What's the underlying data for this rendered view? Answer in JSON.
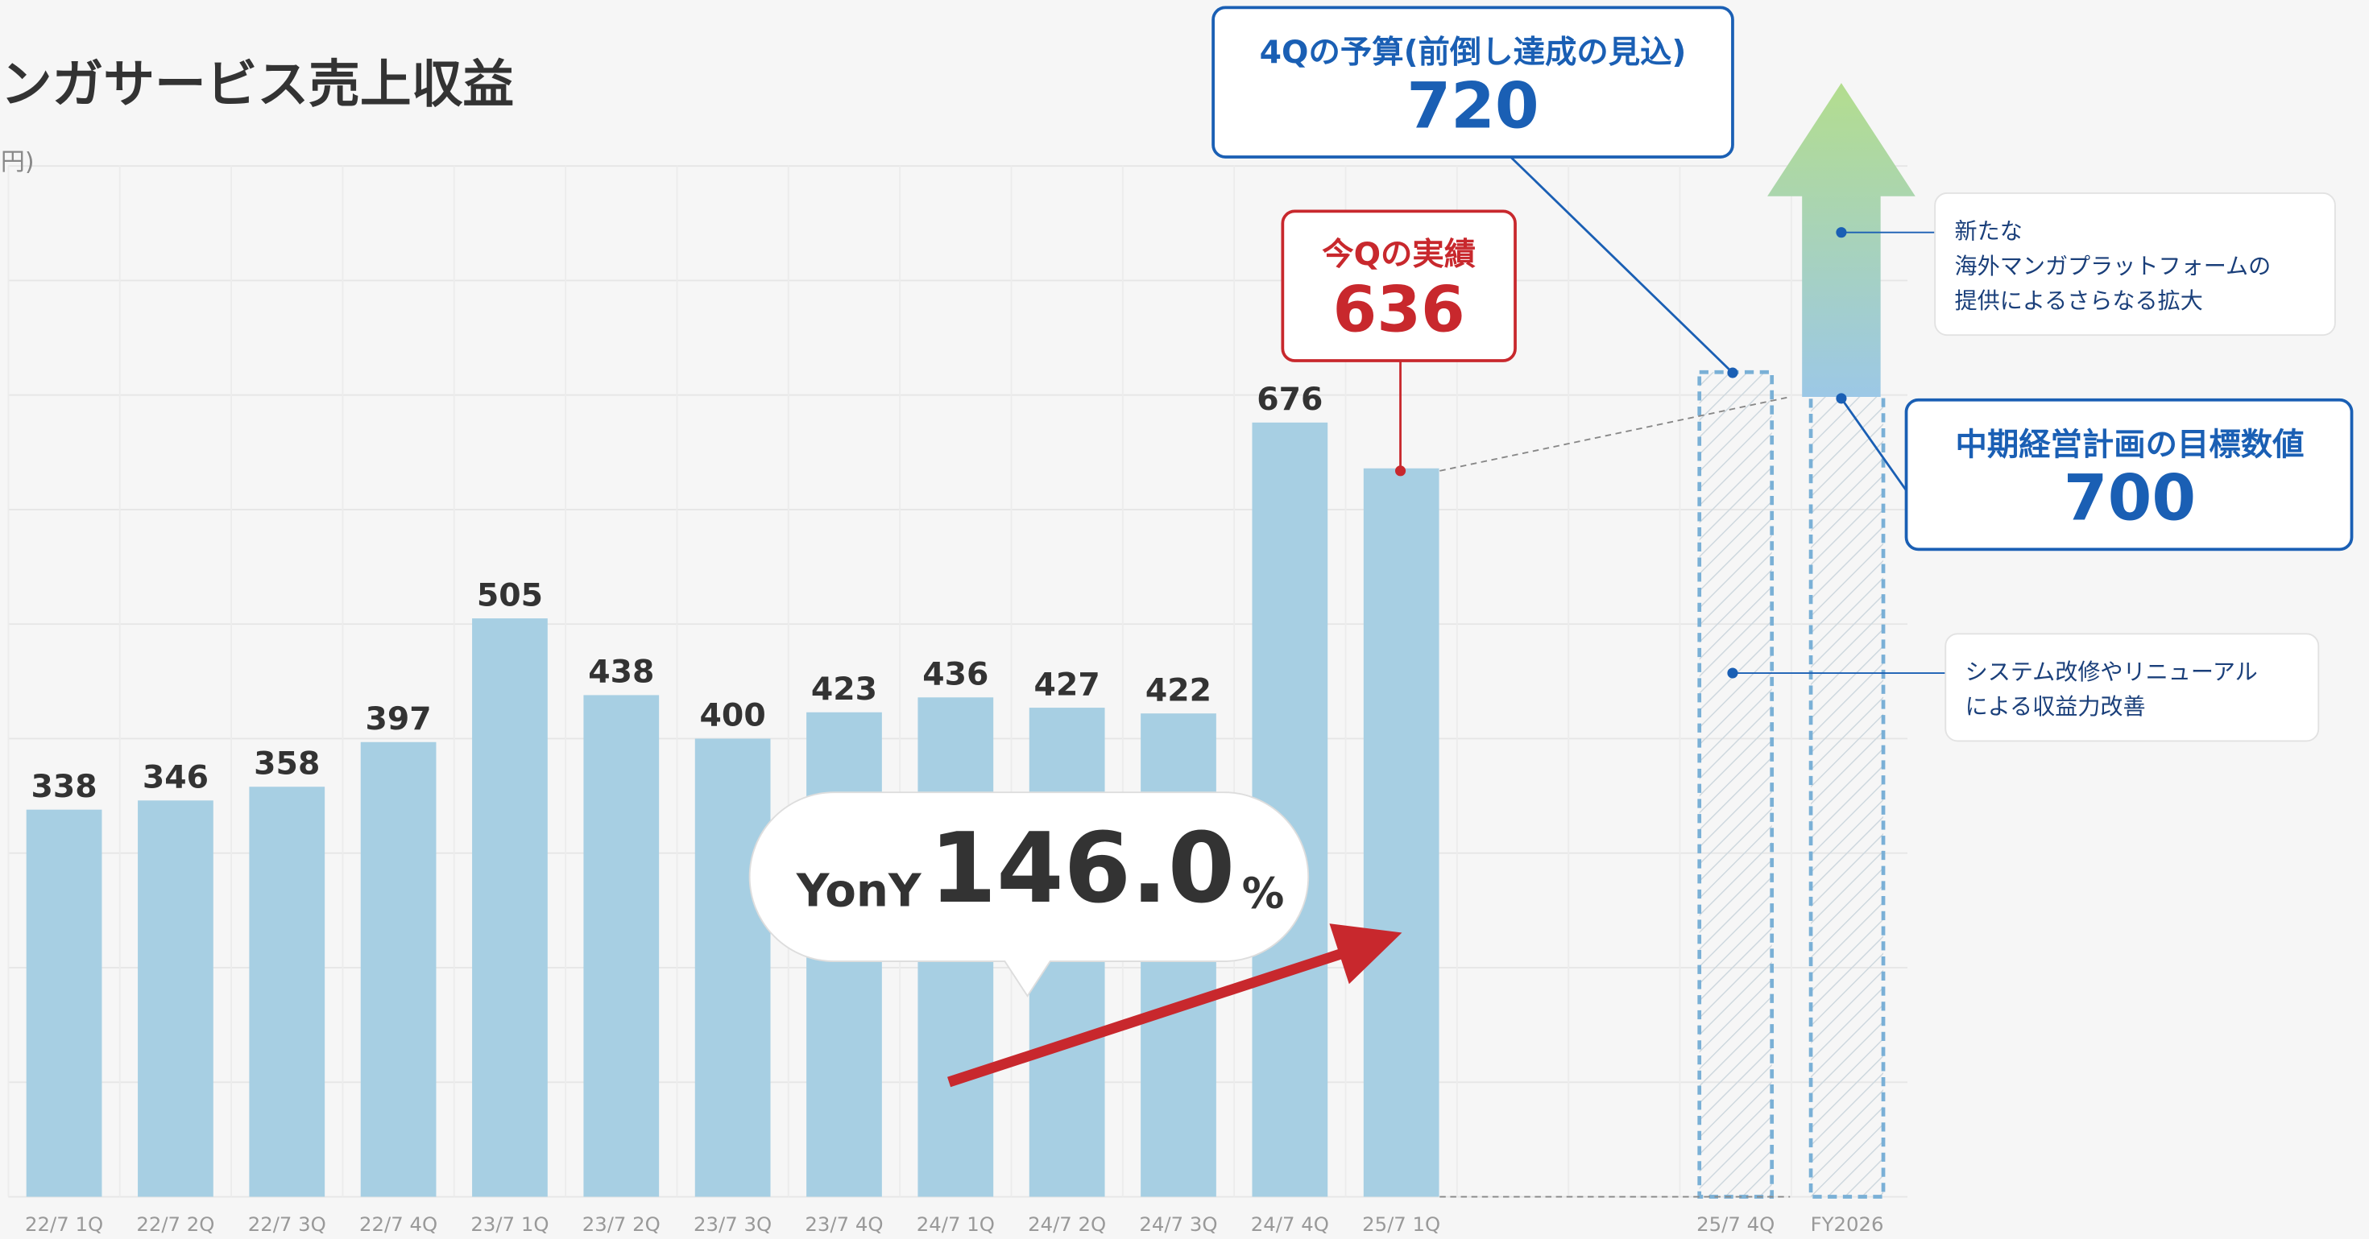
{
  "chart_data": {
    "type": "bar",
    "title": "ンガサービス売上収益",
    "y_label": "円)",
    "categories": [
      "22/7 1Q",
      "22/7 2Q",
      "22/7 3Q",
      "22/7 4Q",
      "23/7 1Q",
      "23/7 2Q",
      "23/7 3Q",
      "23/7 4Q",
      "24/7 1Q",
      "24/7 2Q",
      "24/7 3Q",
      "24/7 4Q",
      "25/7 1Q",
      null,
      null,
      "25/7 4Q",
      "FY2026"
    ],
    "series": [
      {
        "color": "#a7cfe3",
        "values": [
          338,
          346,
          358,
          397,
          505,
          438,
          400,
          423,
          436,
          427,
          422,
          676,
          636,
          null,
          null,
          null,
          null
        ]
      },
      {
        "color": "#7ab0d6",
        "style": "dashed",
        "values": [
          null,
          null,
          null,
          null,
          null,
          null,
          null,
          null,
          null,
          null,
          null,
          null,
          null,
          null,
          null,
          720,
          700
        ]
      }
    ],
    "ylim": [
      0,
      900
    ],
    "yticks": [
      0,
      100,
      200,
      300,
      400,
      500,
      600,
      700,
      800,
      900
    ],
    "grid": true,
    "annotations": {
      "budget": "4Qの予算(前倒し達成の見込)",
      "actual": "今Qの実績",
      "target": "中期経営計画の目標数値",
      "note1": [
        "新たな",
        "海外マンガプラットフォームの",
        "提供によるさらなる拡大"
      ],
      "note2": [
        "システム改修やリニューアル",
        "による収益力改善"
      ],
      "yony": {
        "prefix": "YonY",
        "value": {
          "value": 146,
          "label": "146.0"
        },
        "unit": "%"
      }
    }
  }
}
